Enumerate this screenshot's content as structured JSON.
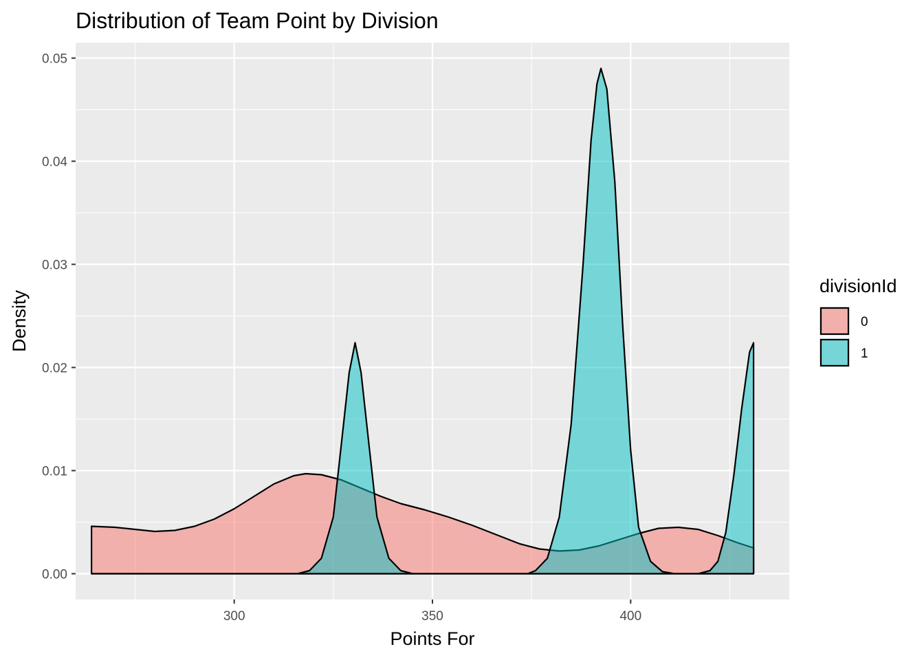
{
  "chart_data": {
    "type": "area",
    "subtype": "density",
    "title": "Distribution of Team Point by Division",
    "xlabel": "Points For",
    "ylabel": "Density",
    "xlim": [
      260,
      440
    ],
    "ylim": [
      -0.0025,
      0.0515
    ],
    "x_ticks": [
      300,
      350,
      400
    ],
    "y_ticks": [
      0.0,
      0.01,
      0.02,
      0.03,
      0.04,
      0.05
    ],
    "y_tick_labels": [
      "0.00",
      "0.01",
      "0.02",
      "0.03",
      "0.04",
      "0.05"
    ],
    "grid": true,
    "legend": {
      "title": "divisionId",
      "position": "right"
    },
    "series": [
      {
        "name": "0",
        "color": "#F8766D",
        "points": [
          [
            264,
            0.0046
          ],
          [
            270,
            0.0045
          ],
          [
            275,
            0.0043
          ],
          [
            280,
            0.0041
          ],
          [
            285,
            0.0042
          ],
          [
            290,
            0.0046
          ],
          [
            295,
            0.0053
          ],
          [
            300,
            0.0063
          ],
          [
            305,
            0.0075
          ],
          [
            310,
            0.0087
          ],
          [
            315,
            0.0095
          ],
          [
            318,
            0.0097
          ],
          [
            322,
            0.0096
          ],
          [
            327,
            0.0091
          ],
          [
            332,
            0.0083
          ],
          [
            337,
            0.0075
          ],
          [
            342,
            0.0068
          ],
          [
            348,
            0.0062
          ],
          [
            354,
            0.0055
          ],
          [
            360,
            0.0047
          ],
          [
            366,
            0.0038
          ],
          [
            372,
            0.0029
          ],
          [
            377,
            0.0024
          ],
          [
            382,
            0.0022
          ],
          [
            387,
            0.0023
          ],
          [
            392,
            0.0027
          ],
          [
            397,
            0.0033
          ],
          [
            402,
            0.0039
          ],
          [
            407,
            0.0044
          ],
          [
            412,
            0.0045
          ],
          [
            417,
            0.0043
          ],
          [
            422,
            0.0037
          ],
          [
            427,
            0.003
          ],
          [
            431,
            0.0025
          ]
        ]
      },
      {
        "name": "1",
        "color": "#00BFC4",
        "points": [
          [
            264,
            0.0
          ],
          [
            316,
            0.0
          ],
          [
            319,
            0.0003
          ],
          [
            322,
            0.0015
          ],
          [
            325,
            0.0055
          ],
          [
            327,
            0.0125
          ],
          [
            329,
            0.0195
          ],
          [
            330.5,
            0.0224
          ],
          [
            332,
            0.0195
          ],
          [
            334,
            0.0125
          ],
          [
            336,
            0.0055
          ],
          [
            339,
            0.0015
          ],
          [
            342,
            0.0003
          ],
          [
            345,
            0.0
          ],
          [
            374,
            0.0
          ],
          [
            376,
            0.0003
          ],
          [
            379,
            0.0015
          ],
          [
            382,
            0.0055
          ],
          [
            385,
            0.0145
          ],
          [
            388,
            0.03
          ],
          [
            390,
            0.042
          ],
          [
            391.5,
            0.0475
          ],
          [
            392.5,
            0.049
          ],
          [
            394,
            0.047
          ],
          [
            396,
            0.038
          ],
          [
            398,
            0.024
          ],
          [
            400,
            0.012
          ],
          [
            402,
            0.0045
          ],
          [
            405,
            0.0012
          ],
          [
            408,
            0.0002
          ],
          [
            411,
            0.0
          ],
          [
            417,
            0.0
          ],
          [
            420,
            0.0003
          ],
          [
            422,
            0.0012
          ],
          [
            424,
            0.004
          ],
          [
            426,
            0.0095
          ],
          [
            428,
            0.016
          ],
          [
            430,
            0.0215
          ],
          [
            431,
            0.0224
          ],
          [
            431,
            0.0
          ]
        ]
      }
    ]
  }
}
